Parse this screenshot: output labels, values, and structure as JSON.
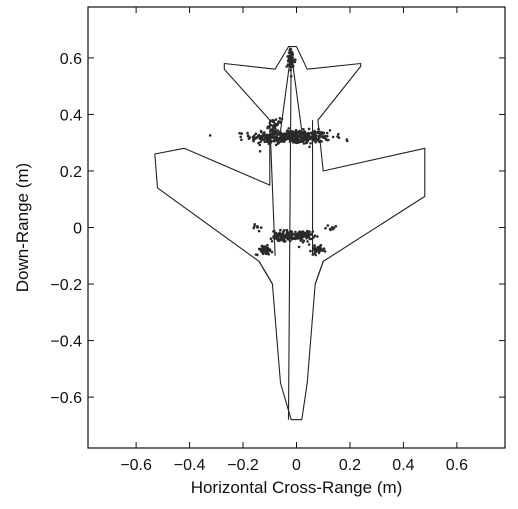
{
  "chart_data": {
    "type": "scatter",
    "title": "",
    "xlabel": "Horizontal Cross-Range (m)",
    "ylabel": "Down-Range (m)",
    "xlim": [
      -0.78,
      0.78
    ],
    "ylim": [
      -0.78,
      0.78
    ],
    "x_ticks": [
      -0.6,
      -0.4,
      -0.2,
      0,
      0.2,
      0.4,
      0.6
    ],
    "x_tick_labels": [
      "−0.6",
      "−0.4",
      "−0.2",
      "0",
      "0.2",
      "0.4",
      "0.6"
    ],
    "y_ticks": [
      0.6,
      0.4,
      0.2,
      0,
      -0.2,
      -0.4,
      -0.6
    ],
    "y_tick_labels": [
      "0.6",
      "0.4",
      "0.2",
      "0",
      "−0.2",
      "−0.4",
      "−0.6"
    ],
    "grid": false,
    "outline": {
      "name": "aircraft-outline",
      "points": [
        [
          -0.03,
          0.64
        ],
        [
          -0.08,
          0.56
        ],
        [
          -0.27,
          0.58
        ],
        [
          -0.27,
          0.56
        ],
        [
          -0.1,
          0.38
        ],
        [
          -0.1,
          0.15
        ],
        [
          -0.42,
          0.28
        ],
        [
          -0.53,
          0.26
        ],
        [
          -0.52,
          0.14
        ],
        [
          -0.14,
          -0.12
        ],
        [
          -0.09,
          -0.2
        ],
        [
          -0.06,
          -0.55
        ],
        [
          -0.02,
          -0.68
        ],
        [
          0.02,
          -0.68
        ],
        [
          0.04,
          -0.55
        ],
        [
          0.07,
          -0.2
        ],
        [
          0.1,
          -0.12
        ],
        [
          0.48,
          0.11
        ],
        [
          0.48,
          0.28
        ],
        [
          0.1,
          0.2
        ],
        [
          0.08,
          0.38
        ],
        [
          0.24,
          0.57
        ],
        [
          0.24,
          0.58
        ],
        [
          0.04,
          0.56
        ],
        [
          0.0,
          0.64
        ]
      ]
    },
    "structure_lines": [
      [
        [
          -0.1,
          0.38
        ],
        [
          -0.08,
          -0.1
        ]
      ],
      [
        [
          0.06,
          0.38
        ],
        [
          0.06,
          -0.1
        ]
      ],
      [
        [
          -0.02,
          0.62
        ],
        [
          -0.03,
          -0.68
        ]
      ],
      [
        [
          -0.02,
          0.62
        ],
        [
          -0.06,
          0.34
        ]
      ],
      [
        [
          -0.02,
          0.62
        ],
        [
          0.02,
          0.34
        ]
      ],
      [
        [
          -0.14,
          -0.12
        ],
        [
          -0.09,
          -0.2
        ]
      ],
      [
        [
          0.1,
          -0.12
        ],
        [
          0.07,
          -0.2
        ]
      ]
    ],
    "clusters": [
      {
        "name": "wing-root-cluster",
        "cx": -0.02,
        "cy": 0.32,
        "sx": 0.075,
        "sy": 0.012,
        "n": 420
      },
      {
        "name": "upper-left-cluster",
        "cx": -0.08,
        "cy": 0.36,
        "sx": 0.012,
        "sy": 0.012,
        "n": 40
      },
      {
        "name": "nose-cluster",
        "cx": -0.02,
        "cy": 0.59,
        "sx": 0.008,
        "sy": 0.02,
        "n": 60
      },
      {
        "name": "centre-left-cluster",
        "cx": -0.05,
        "cy": -0.03,
        "sx": 0.02,
        "sy": 0.01,
        "n": 90
      },
      {
        "name": "centre-right-cluster",
        "cx": 0.02,
        "cy": -0.03,
        "sx": 0.02,
        "sy": 0.01,
        "n": 90
      },
      {
        "name": "left-inlet-cluster",
        "cx": -0.12,
        "cy": -0.08,
        "sx": 0.015,
        "sy": 0.008,
        "n": 60
      },
      {
        "name": "right-inlet-cluster",
        "cx": 0.08,
        "cy": -0.08,
        "sx": 0.012,
        "sy": 0.007,
        "n": 40
      },
      {
        "name": "left-sparse-cluster",
        "cx": -0.15,
        "cy": 0.0,
        "sx": 0.008,
        "sy": 0.008,
        "n": 8
      },
      {
        "name": "right-sparse-cluster",
        "cx": 0.13,
        "cy": 0.0,
        "sx": 0.01,
        "sy": 0.006,
        "n": 8
      }
    ]
  }
}
